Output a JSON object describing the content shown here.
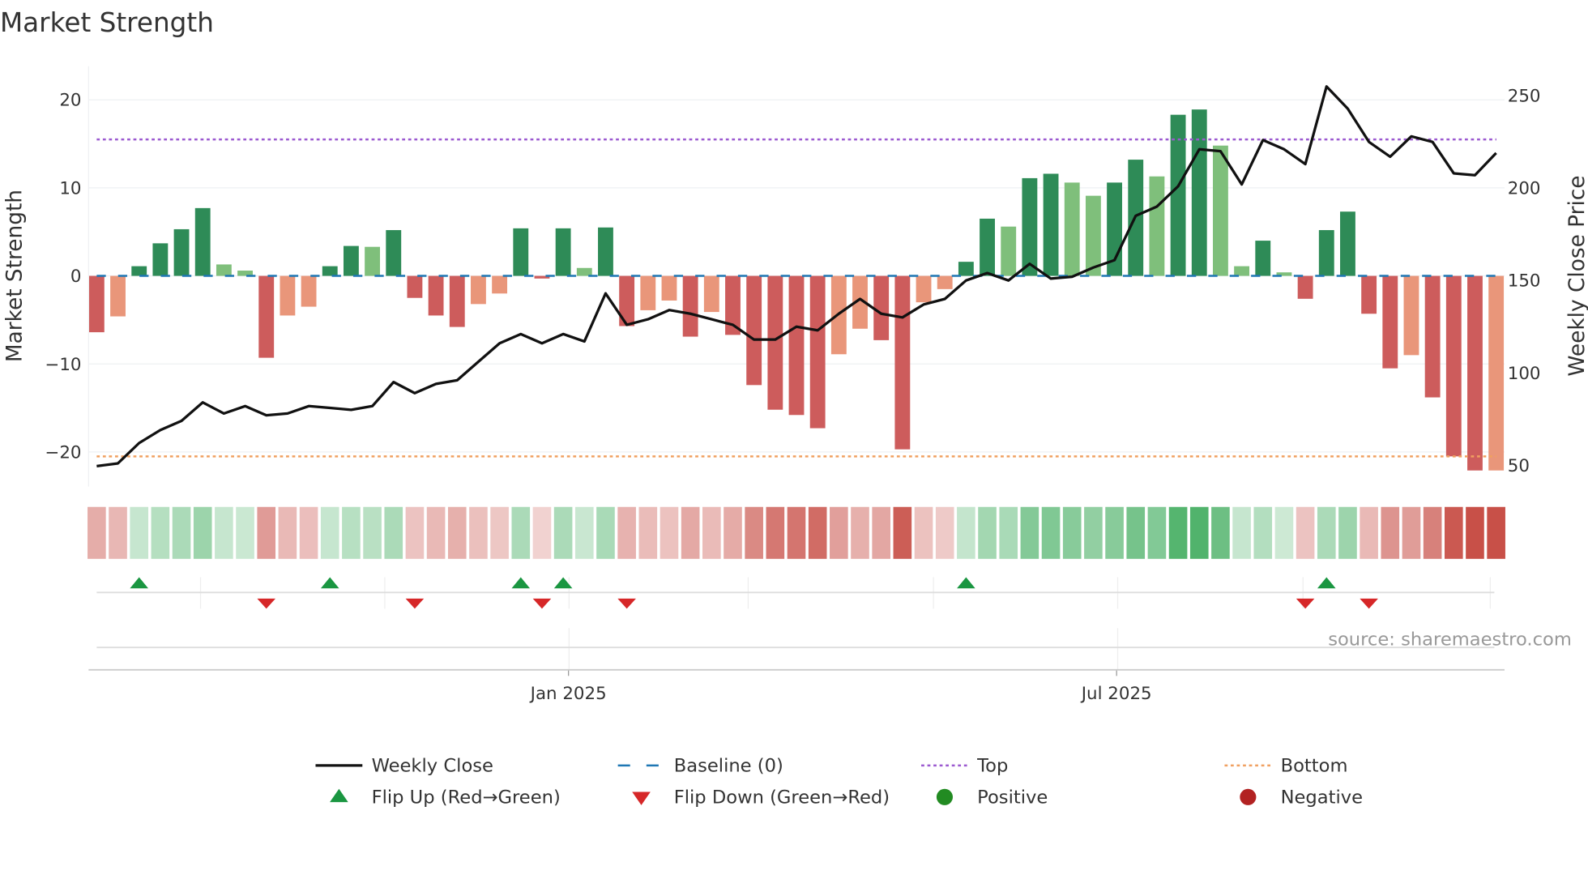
{
  "title": "Market Strength",
  "source": "source: sharemaestro.com",
  "colors": {
    "strong_green": "#2e8b57",
    "weak_green": "#7fbf7b",
    "strong_red": "#cd5c5c",
    "weak_red": "#e9967a",
    "line": "#111111",
    "baseline": "#1f77b4",
    "top": "#9b59d0",
    "bottom": "#f0a060",
    "flip_up": "#1a9641",
    "flip_down": "#d62728",
    "positive": "#228b22",
    "negative": "#b22222"
  },
  "chart_data": {
    "type": "bar+line",
    "title": "Market Strength",
    "ylabel": "Market Strength",
    "y2label": "Weekly Close Price",
    "ylim": [
      -24,
      24
    ],
    "y2lim": [
      50,
      260
    ],
    "yticks": [
      "20",
      "10",
      "0",
      "−10",
      "−20"
    ],
    "ytick_values": [
      20,
      10,
      0,
      -10,
      -20
    ],
    "y2ticks": [
      "250",
      "200",
      "150",
      "100",
      "50"
    ],
    "y2tick_values": [
      250,
      200,
      150,
      100,
      50
    ],
    "xticks": [
      "Jan 2025",
      "Jul 2025"
    ],
    "xtick_week_index": [
      22.25,
      48.1
    ],
    "top_level": 15.5,
    "bottom_level": -20.5,
    "baseline": 0,
    "strength": [
      -6.4,
      -4.6,
      1.1,
      3.7,
      5.3,
      7.7,
      1.3,
      0.6,
      -9.3,
      -4.5,
      -3.5,
      1.1,
      3.4,
      3.3,
      5.2,
      -2.5,
      -4.5,
      -5.8,
      -3.2,
      -2.0,
      5.4,
      -0.3,
      5.4,
      0.9,
      5.5,
      -5.7,
      -3.9,
      -2.8,
      -6.9,
      -4.1,
      -6.7,
      -12.4,
      -15.2,
      -15.8,
      -17.3,
      -8.9,
      -6.0,
      -7.3,
      -19.7,
      -3.0,
      -1.5,
      1.6,
      6.5,
      5.6,
      11.1,
      11.6,
      10.6,
      9.1,
      10.6,
      13.2,
      11.3,
      18.3,
      18.9,
      14.8,
      1.1,
      4.0,
      0.4,
      -2.6,
      5.2,
      7.3,
      -4.3,
      -10.5,
      -9.0,
      -13.8,
      -20.5,
      -22.1,
      -22.1
    ],
    "strong": [
      1,
      0,
      1,
      1,
      1,
      1,
      0,
      0,
      1,
      0,
      0,
      1,
      1,
      0,
      1,
      1,
      1,
      1,
      0,
      0,
      1,
      1,
      1,
      0,
      1,
      1,
      0,
      0,
      1,
      0,
      1,
      1,
      1,
      1,
      1,
      0,
      0,
      1,
      1,
      0,
      0,
      1,
      1,
      0,
      1,
      1,
      0,
      0,
      1,
      1,
      0,
      1,
      1,
      0,
      0,
      1,
      0,
      1,
      1,
      1,
      1,
      1,
      0,
      1,
      1,
      1,
      0
    ],
    "weekly_close": [
      49.5,
      51,
      62,
      69,
      74,
      84,
      78,
      82,
      77,
      78,
      82,
      81,
      80,
      82,
      95,
      89,
      94,
      96,
      106,
      116,
      121,
      116,
      121,
      117,
      143,
      126,
      129,
      134,
      132,
      129,
      126,
      118,
      118,
      125,
      123,
      132,
      140,
      132,
      130,
      137,
      140,
      150,
      154,
      150,
      159,
      151,
      152,
      157,
      161,
      185,
      190,
      201,
      221,
      220,
      202,
      226,
      221,
      213,
      255,
      243,
      225,
      217,
      228,
      225,
      208,
      207,
      219
    ],
    "flip_up_weeks": [
      2,
      11,
      20,
      22,
      41,
      58
    ],
    "flip_down_weeks": [
      8,
      15,
      21,
      25,
      57,
      60
    ]
  },
  "legend": [
    {
      "label": "Weekly Close",
      "kind": "line"
    },
    {
      "label": "Baseline (0)",
      "kind": "dash"
    },
    {
      "label": "Top",
      "kind": "dot-top"
    },
    {
      "label": "Bottom",
      "kind": "dot-bottom"
    },
    {
      "label": "Flip Up (Red→Green)",
      "kind": "tri-up"
    },
    {
      "label": "Flip Down (Green→Red)",
      "kind": "tri-down"
    },
    {
      "label": "Positive",
      "kind": "circle-pos"
    },
    {
      "label": "Negative",
      "kind": "circle-neg"
    }
  ]
}
